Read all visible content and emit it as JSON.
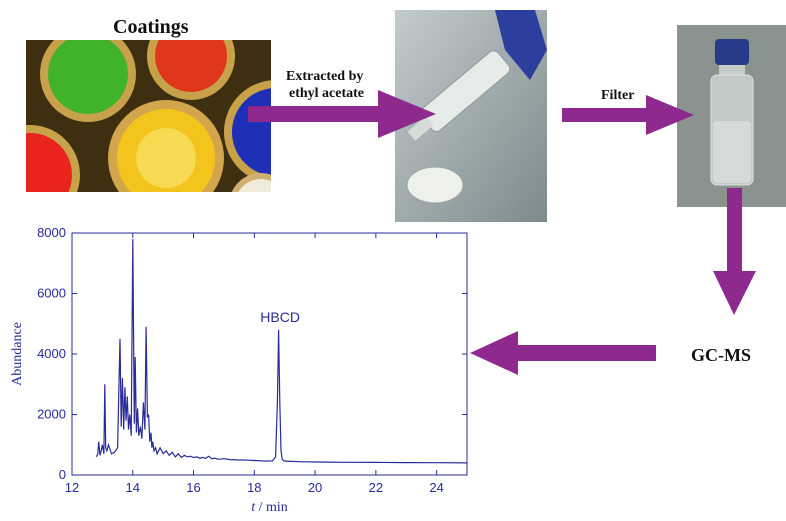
{
  "workflow": {
    "coatings_label": "Coatings",
    "extract_label_line1": "Extracted by",
    "extract_label_line2": "ethyl acetate",
    "filter_label": "Filter",
    "gcms_label": "GC-MS",
    "arrow_color": "#8e2a8e"
  },
  "chart_data": {
    "type": "line",
    "xlabel_italic": "t",
    "xlabel_unit": " / min",
    "ylabel": "Abundance",
    "xlim": [
      12,
      25
    ],
    "ylim": [
      0,
      8000
    ],
    "xticks": [
      12,
      14,
      16,
      18,
      20,
      22,
      24
    ],
    "yticks": [
      0,
      2000,
      4000,
      6000,
      8000
    ],
    "annotation": {
      "text": "HBCD",
      "x": 18.85,
      "y": 4800
    },
    "line_color": "#2a2a9a",
    "series": [
      {
        "x": [
          12.8,
          12.85,
          12.88,
          12.92,
          12.96,
          13.0,
          13.05,
          13.08,
          13.11,
          13.15,
          13.2,
          13.3,
          13.4,
          13.5,
          13.58,
          13.62,
          13.66,
          13.7,
          13.74,
          13.78,
          13.82,
          13.86,
          13.9,
          13.95,
          14.0,
          14.05,
          14.08,
          14.12,
          14.16,
          14.2,
          14.25,
          14.3,
          14.35,
          14.4,
          14.44,
          14.48,
          14.52,
          14.56,
          14.6,
          14.63,
          14.66,
          14.7,
          14.75,
          14.8,
          14.9,
          15.0,
          15.1,
          15.2,
          15.3,
          15.4,
          15.5,
          15.6,
          15.7,
          15.8,
          15.9,
          16.0,
          16.1,
          16.2,
          16.3,
          16.4,
          16.5,
          16.6,
          16.7,
          16.8,
          17.0,
          17.2,
          17.4,
          17.6,
          17.8,
          18.0,
          18.2,
          18.4,
          18.6,
          18.7,
          18.76,
          18.8,
          18.84,
          18.88,
          18.92,
          18.96,
          19.0,
          19.2,
          19.5,
          20.0,
          20.5,
          21.0,
          22.0,
          23.0,
          24.0,
          25.0
        ],
        "y": [
          600,
          700,
          1100,
          650,
          800,
          1000,
          700,
          3000,
          900,
          800,
          1000,
          700,
          750,
          900,
          4500,
          1600,
          3200,
          1500,
          2900,
          1800,
          2600,
          1500,
          2000,
          1300,
          7800,
          1700,
          3900,
          1400,
          2200,
          1300,
          1600,
          1200,
          2400,
          1500,
          4900,
          1900,
          2000,
          1100,
          1400,
          900,
          1100,
          800,
          900,
          700,
          900,
          700,
          800,
          650,
          750,
          600,
          700,
          580,
          650,
          600,
          620,
          580,
          600,
          560,
          580,
          550,
          620,
          540,
          560,
          520,
          540,
          510,
          500,
          495,
          490,
          480,
          470,
          460,
          470,
          600,
          2400,
          4800,
          2400,
          800,
          520,
          480,
          460,
          450,
          440,
          430,
          425,
          420,
          415,
          410,
          405,
          400
        ]
      }
    ]
  }
}
